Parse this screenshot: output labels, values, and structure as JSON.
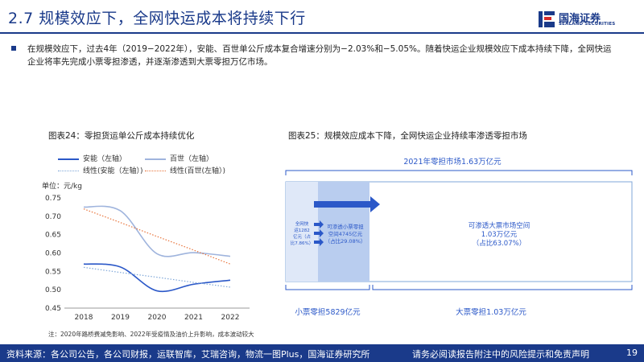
{
  "header": {
    "title": "2.7 规模效应下，全网快运成本将持续下行",
    "logo_cn": "国海证券",
    "logo_en": "SEALAND SECURITIES",
    "brand_color": "#1a3a8a"
  },
  "intro_text": "在规模效应下，过去4年（2019−2022年），安能、百世单公斤成本复合增速分别为−2.03%和−5.05%。随着快运企业规模效应下成本持续下降，全网快运企业将率先完成小票零担渗透，并逐渐渗透到大票零担万亿市场。",
  "left_figure": {
    "title": "图表24：零担货运单公斤成本持续优化",
    "unit_label": "单位：元/kg",
    "note": "注：2020年路桥费减免影响、2022年受疫情及油价上升影响，成本波动较大"
  },
  "chart_data": {
    "type": "line",
    "title": "图表24：零担货运单公斤成本持续优化",
    "x": [
      "2018",
      "2019",
      "2020",
      "2021",
      "2022"
    ],
    "ylim": [
      0.45,
      0.75
    ],
    "yticks": [
      "0.45",
      "0.50",
      "0.55",
      "0.60",
      "0.65",
      "0.70",
      "0.75"
    ],
    "grid": false,
    "legend_position": "top",
    "series": [
      {
        "name": "安能（左轴）",
        "values": [
          0.57,
          0.562,
          0.497,
          0.515,
          0.526
        ],
        "color": "#2b58c8",
        "style": "solid"
      },
      {
        "name": "百世（左轴）",
        "values": [
          0.725,
          0.715,
          0.598,
          0.601,
          0.591
        ],
        "color": "#9fb4dd",
        "style": "solid"
      },
      {
        "name": "线性(安能（左轴）)",
        "values": [
          0.561,
          0.547,
          0.534,
          0.52,
          0.507
        ],
        "color": "#7fa7d8",
        "style": "dotted"
      },
      {
        "name": "线性(百世(左轴）)",
        "values": [
          0.72,
          0.683,
          0.645,
          0.608,
          0.57
        ],
        "color": "#e8733a",
        "style": "dotted"
      }
    ]
  },
  "right_figure": {
    "title": "图表25：规模效应成本下降，全网快运企业持续率渗透零担市场",
    "market_total": "2021年零担市场1.63万亿元",
    "inner_label": "全网快运1282亿元（占比7.86%）",
    "inner_label_lines": [
      "全网快",
      "运1282",
      "亿元（占",
      "比7.86%）"
    ],
    "small_space_lines": [
      "可渗透小票零担",
      "空间4745亿元",
      "（占比29.08%）"
    ],
    "big_space_lines": [
      "可渗透大票市场空间",
      "1.03万亿元",
      "（占比63.07%）"
    ],
    "small_total": "小票零担5829亿元",
    "big_total": "大票零担1.03万亿元"
  },
  "footer": {
    "source": "资料来源：各公司公告，各公司财报，运联智库，艾瑞咨询，物流一图Plus，国海证券研究所",
    "disclaimer": "请务必阅读报告附注中的风险提示和免责声明",
    "page": "19"
  }
}
